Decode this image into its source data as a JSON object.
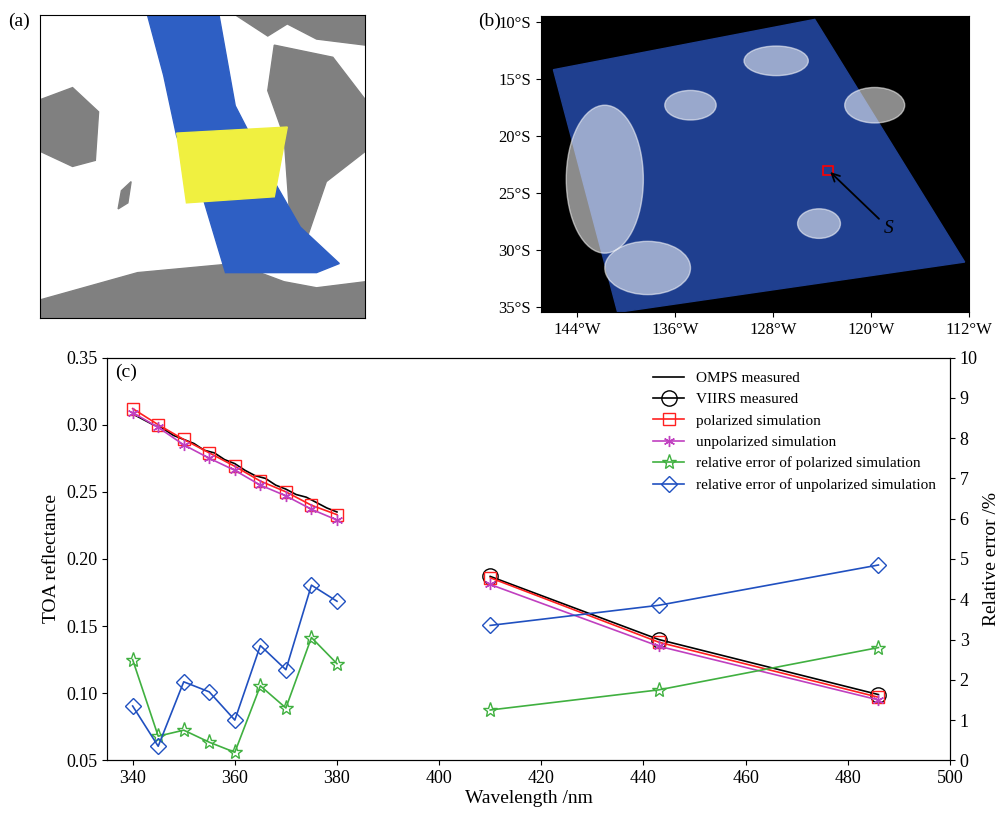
{
  "panel_labels": [
    "(a)",
    "(b)",
    "(c)"
  ],
  "map_b": {
    "xlim": [
      -147,
      -112
    ],
    "ylim": [
      -35.5,
      -9.5
    ],
    "xticks": [
      {
        "value": -144,
        "label": "144°W"
      },
      {
        "value": -136,
        "label": "136°W"
      },
      {
        "value": -128,
        "label": "128°W"
      },
      {
        "value": -120,
        "label": "120°W"
      },
      {
        "value": -112,
        "label": "112°W"
      }
    ],
    "yticks": [
      {
        "value": -10,
        "label": "10°S"
      },
      {
        "value": -15,
        "label": "15°S"
      },
      {
        "value": -20,
        "label": "20°S"
      },
      {
        "value": -25,
        "label": "25°S"
      },
      {
        "value": -30,
        "label": "30°S"
      },
      {
        "value": -35,
        "label": "35°S"
      }
    ],
    "site": {
      "label": "S",
      "lon": -123.5,
      "lat": -23
    }
  },
  "chart_data": {
    "type": "line",
    "x_label": "Wavelength /nm",
    "y_label": "TOA reflectance",
    "y2_label": "Relative error /%",
    "xlim": [
      335,
      500
    ],
    "xticks": [
      340,
      360,
      380,
      400,
      420,
      440,
      460,
      480,
      500
    ],
    "ylim": [
      0.05,
      0.35
    ],
    "yticks": [
      0.05,
      {
        "value": 0.1,
        "label": "0.10"
      },
      0.15,
      {
        "value": 0.2,
        "label": "0.20"
      },
      0.25,
      {
        "value": 0.3,
        "label": "0.30"
      },
      0.35
    ],
    "y2lim": [
      0,
      10
    ],
    "y2ticks": [
      0,
      1,
      2,
      3,
      4,
      5,
      6,
      7,
      8,
      9,
      10
    ],
    "legend": "upper right",
    "series": [
      {
        "name": "OMPS measured",
        "color": "#000000",
        "marker": "none",
        "line_style": "solid",
        "x": [
          340,
          342,
          344,
          346,
          348,
          350,
          352,
          354,
          356,
          358,
          360,
          362,
          364,
          366,
          368,
          370,
          372,
          374,
          376,
          378,
          380
        ],
        "values": [
          0.308,
          0.304,
          0.3,
          0.297,
          0.292,
          0.289,
          0.286,
          0.281,
          0.279,
          0.274,
          0.271,
          0.266,
          0.262,
          0.26,
          0.255,
          0.252,
          0.248,
          0.246,
          0.242,
          0.238,
          0.235
        ]
      },
      {
        "name": "VIIRS measured",
        "color": "#000000",
        "marker": "circle",
        "line_style": "solid",
        "x": [
          410,
          443,
          486
        ],
        "values": [
          0.187,
          0.14,
          0.099
        ]
      },
      {
        "name": "polarized simulation",
        "color": "#ff2020",
        "marker": "square",
        "line_style": "solid",
        "x": [
          340,
          345,
          350,
          355,
          360,
          365,
          370,
          375,
          380,
          null,
          410,
          443,
          486
        ],
        "values": [
          0.312,
          0.3,
          0.289,
          0.279,
          0.269,
          0.258,
          0.25,
          0.24,
          0.233,
          null,
          0.186,
          0.138,
          0.097
        ]
      },
      {
        "name": "unpolarized simulation",
        "color": "#c040c0",
        "marker": "asterisk",
        "line_style": "solid",
        "x": [
          340,
          345,
          350,
          355,
          360,
          365,
          370,
          375,
          380,
          null,
          410,
          443,
          486
        ],
        "values": [
          0.309,
          0.298,
          0.285,
          0.275,
          0.266,
          0.255,
          0.247,
          0.237,
          0.229,
          null,
          0.181,
          0.135,
          0.095
        ]
      },
      {
        "name": "relative error of polarized simulation",
        "color": "#40b040",
        "marker": "star",
        "line_style": "solid",
        "axis": "y2",
        "x": [
          340,
          345,
          350,
          355,
          360,
          365,
          370,
          375,
          380,
          null,
          410,
          443,
          486
        ],
        "values": [
          2.5,
          0.6,
          0.75,
          0.45,
          0.2,
          1.85,
          1.3,
          3.05,
          2.4,
          null,
          1.25,
          1.75,
          2.8
        ]
      },
      {
        "name": "relative error of unpolarized simulation",
        "color": "#2050c0",
        "marker": "diamond",
        "line_style": "solid",
        "axis": "y2",
        "x": [
          340,
          345,
          350,
          355,
          360,
          365,
          370,
          375,
          380,
          null,
          410,
          443,
          486
        ],
        "values": [
          1.35,
          0.35,
          1.95,
          1.7,
          1.0,
          2.85,
          2.25,
          4.35,
          3.95,
          null,
          3.35,
          3.85,
          4.85
        ]
      }
    ]
  }
}
